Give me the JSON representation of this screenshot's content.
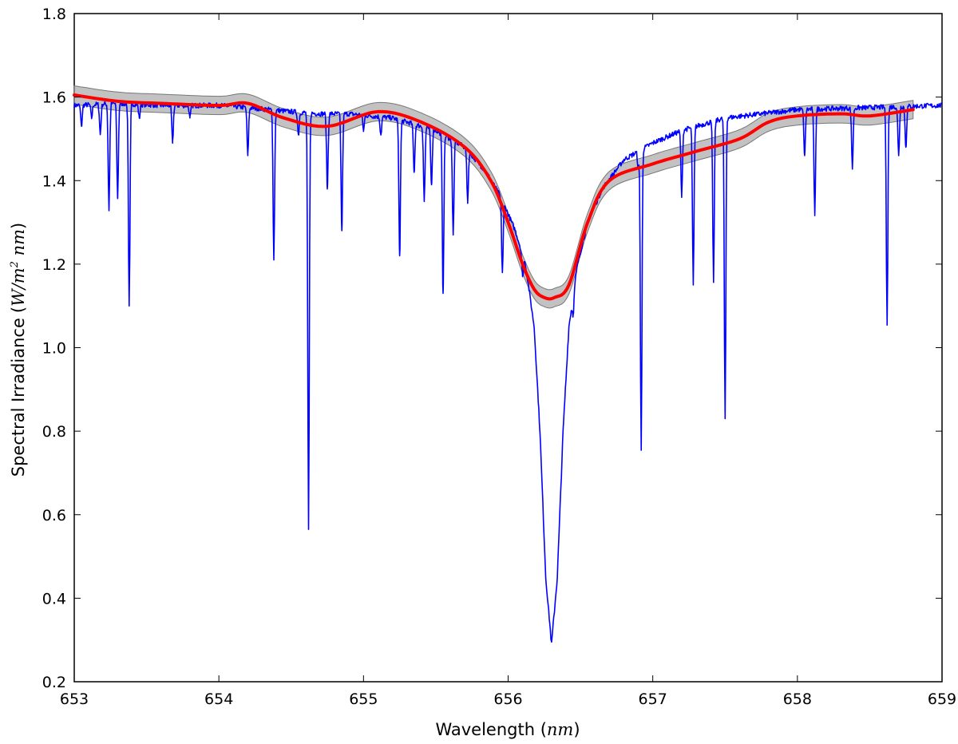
{
  "chart_data": {
    "type": "line",
    "title": "",
    "xlabel": "Wavelength",
    "xlabel_unit": "nm",
    "ylabel": "Spectral Irradiance",
    "ylabel_unit_parts": {
      "open": "(",
      "w": "W/m",
      "sup": "2",
      "nm": " nm",
      "close": ")"
    },
    "xlim": [
      653,
      659
    ],
    "ylim": [
      0.2,
      1.8
    ],
    "xticks": [
      653,
      654,
      655,
      656,
      657,
      658,
      659
    ],
    "yticks": [
      0.2,
      0.4,
      0.6,
      0.8,
      1.0,
      1.2,
      1.4,
      1.6,
      1.8
    ],
    "xtick_labels": [
      "653",
      "654",
      "655",
      "656",
      "657",
      "658",
      "659"
    ],
    "ytick_labels": [
      "0.2",
      "0.4",
      "0.6",
      "0.8",
      "1.0",
      "1.2",
      "1.4",
      "1.6",
      "1.8"
    ],
    "grid": false,
    "legend": "none",
    "colors": {
      "spectrum": "#0000ff",
      "model": "#ff0000",
      "band": "#999999"
    },
    "series": [
      {
        "role": "spectrum",
        "continuum": [
          [
            653.0,
            1.58
          ],
          [
            653.3,
            1.585
          ],
          [
            653.6,
            1.58
          ],
          [
            654.0,
            1.58
          ],
          [
            654.2,
            1.575
          ],
          [
            654.5,
            1.565
          ],
          [
            654.7,
            1.56
          ],
          [
            654.9,
            1.56
          ],
          [
            655.2,
            1.55
          ],
          [
            655.5,
            1.52
          ],
          [
            655.7,
            1.48
          ],
          [
            655.85,
            1.42
          ],
          [
            655.95,
            1.36
          ],
          [
            656.05,
            1.28
          ],
          [
            656.12,
            1.2
          ],
          [
            656.18,
            1.05
          ],
          [
            656.22,
            0.8
          ],
          [
            656.26,
            0.45
          ],
          [
            656.3,
            0.29
          ],
          [
            656.34,
            0.45
          ],
          [
            656.38,
            0.8
          ],
          [
            656.42,
            1.05
          ],
          [
            656.48,
            1.2
          ],
          [
            656.55,
            1.3
          ],
          [
            656.65,
            1.38
          ],
          [
            656.8,
            1.45
          ],
          [
            657.0,
            1.49
          ],
          [
            657.2,
            1.52
          ],
          [
            657.5,
            1.55
          ],
          [
            658.0,
            1.57
          ],
          [
            658.5,
            1.575
          ],
          [
            659.0,
            1.58
          ]
        ],
        "lines": [
          [
            653.05,
            1.53
          ],
          [
            653.12,
            1.55
          ],
          [
            653.18,
            1.51
          ],
          [
            653.24,
            1.33
          ],
          [
            653.3,
            1.36
          ],
          [
            653.38,
            1.1
          ],
          [
            653.45,
            1.55
          ],
          [
            653.68,
            1.49
          ],
          [
            653.8,
            1.55
          ],
          [
            654.2,
            1.46
          ],
          [
            654.38,
            1.21
          ],
          [
            654.55,
            1.51
          ],
          [
            654.62,
            0.565
          ],
          [
            654.75,
            1.38
          ],
          [
            654.85,
            1.28
          ],
          [
            655.0,
            1.52
          ],
          [
            655.12,
            1.51
          ],
          [
            655.25,
            1.22
          ],
          [
            655.35,
            1.42
          ],
          [
            655.42,
            1.35
          ],
          [
            655.47,
            1.39
          ],
          [
            655.55,
            1.13
          ],
          [
            655.62,
            1.27
          ],
          [
            655.72,
            1.35
          ],
          [
            655.96,
            1.18
          ],
          [
            656.1,
            1.17
          ],
          [
            656.45,
            1.08
          ],
          [
            656.9,
            1.43
          ],
          [
            656.92,
            0.755
          ],
          [
            657.2,
            1.36
          ],
          [
            657.28,
            1.15
          ],
          [
            657.42,
            1.16
          ],
          [
            657.5,
            0.83
          ],
          [
            658.05,
            1.46
          ],
          [
            658.12,
            1.32
          ],
          [
            658.38,
            1.43
          ],
          [
            658.62,
            1.06
          ],
          [
            658.7,
            1.46
          ],
          [
            658.75,
            1.48
          ]
        ]
      },
      {
        "role": "model",
        "x": [
          653.0,
          653.3,
          653.6,
          654.0,
          654.2,
          654.45,
          654.75,
          655.1,
          655.4,
          655.7,
          655.88,
          656.0,
          656.1,
          656.18,
          656.25,
          656.32,
          656.42,
          656.55,
          656.7,
          657.0,
          657.3,
          657.6,
          657.8,
          658.0,
          658.3,
          658.5,
          658.8
        ],
        "y": [
          1.605,
          1.59,
          1.585,
          1.58,
          1.585,
          1.55,
          1.53,
          1.565,
          1.54,
          1.48,
          1.4,
          1.3,
          1.2,
          1.14,
          1.12,
          1.12,
          1.15,
          1.3,
          1.4,
          1.44,
          1.47,
          1.5,
          1.54,
          1.555,
          1.56,
          1.555,
          1.57
        ],
        "band_halfwidth": 0.022
      }
    ]
  }
}
